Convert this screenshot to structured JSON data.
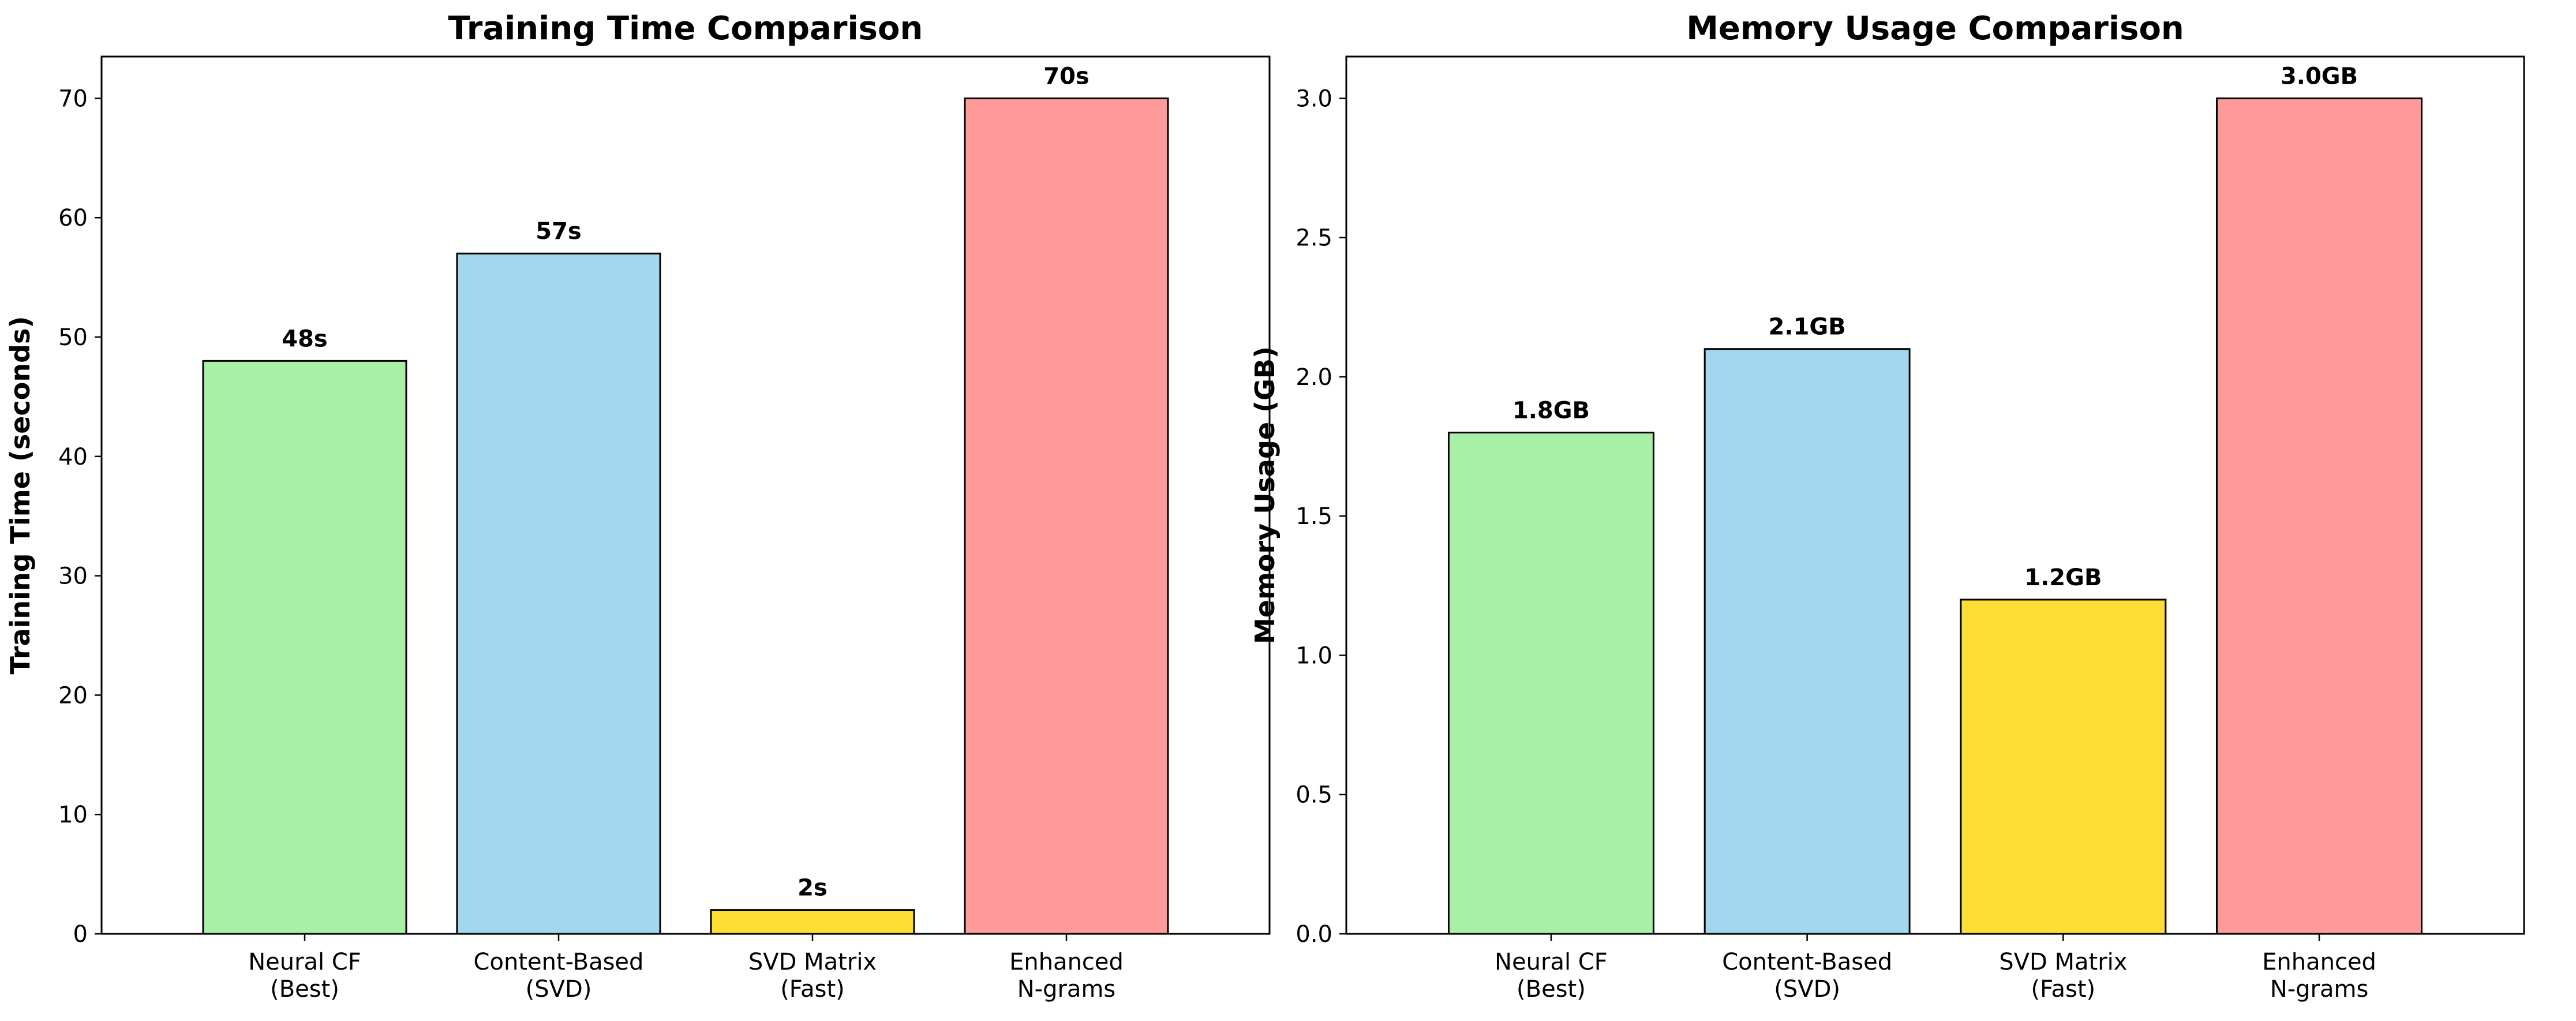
{
  "chart_data": [
    {
      "type": "bar",
      "title": "Training Time Comparison",
      "xlabel": "",
      "ylabel": "Training Time (seconds)",
      "categories": [
        "Neural CF\n(Best)",
        "Content-Based\n(SVD)",
        "SVD Matrix\n(Fast)",
        "Enhanced\nN-grams"
      ],
      "values": [
        48,
        57,
        2,
        70
      ],
      "value_labels": [
        "48s",
        "57s",
        "2s",
        "70s"
      ],
      "colors": [
        "#a8f0a5",
        "#a2d7ed",
        "#fede35",
        "#ff9a9a"
      ],
      "ylim": [
        0,
        73.5
      ],
      "yticks": [
        0,
        10,
        20,
        30,
        40,
        50,
        60,
        70
      ],
      "ytick_labels": [
        "0",
        "10",
        "20",
        "30",
        "40",
        "50",
        "60",
        "70"
      ],
      "grid": false,
      "legend": "none"
    },
    {
      "type": "bar",
      "title": "Memory Usage Comparison",
      "xlabel": "",
      "ylabel": "Memory Usage (GB)",
      "categories": [
        "Neural CF\n(Best)",
        "Content-Based\n(SVD)",
        "SVD Matrix\n(Fast)",
        "Enhanced\nN-grams"
      ],
      "values": [
        1.8,
        2.1,
        1.2,
        3.0
      ],
      "value_labels": [
        "1.8GB",
        "2.1GB",
        "1.2GB",
        "3.0GB"
      ],
      "colors": [
        "#a8f0a5",
        "#a2d7ed",
        "#fede35",
        "#ff9a9a"
      ],
      "ylim": [
        0,
        3.15
      ],
      "yticks": [
        0,
        0.5,
        1.0,
        1.5,
        2.0,
        2.5,
        3.0
      ],
      "ytick_labels": [
        "0.0",
        "0.5",
        "1.0",
        "1.5",
        "2.0",
        "2.5",
        "3.0"
      ],
      "grid": false,
      "legend": "none"
    }
  ]
}
